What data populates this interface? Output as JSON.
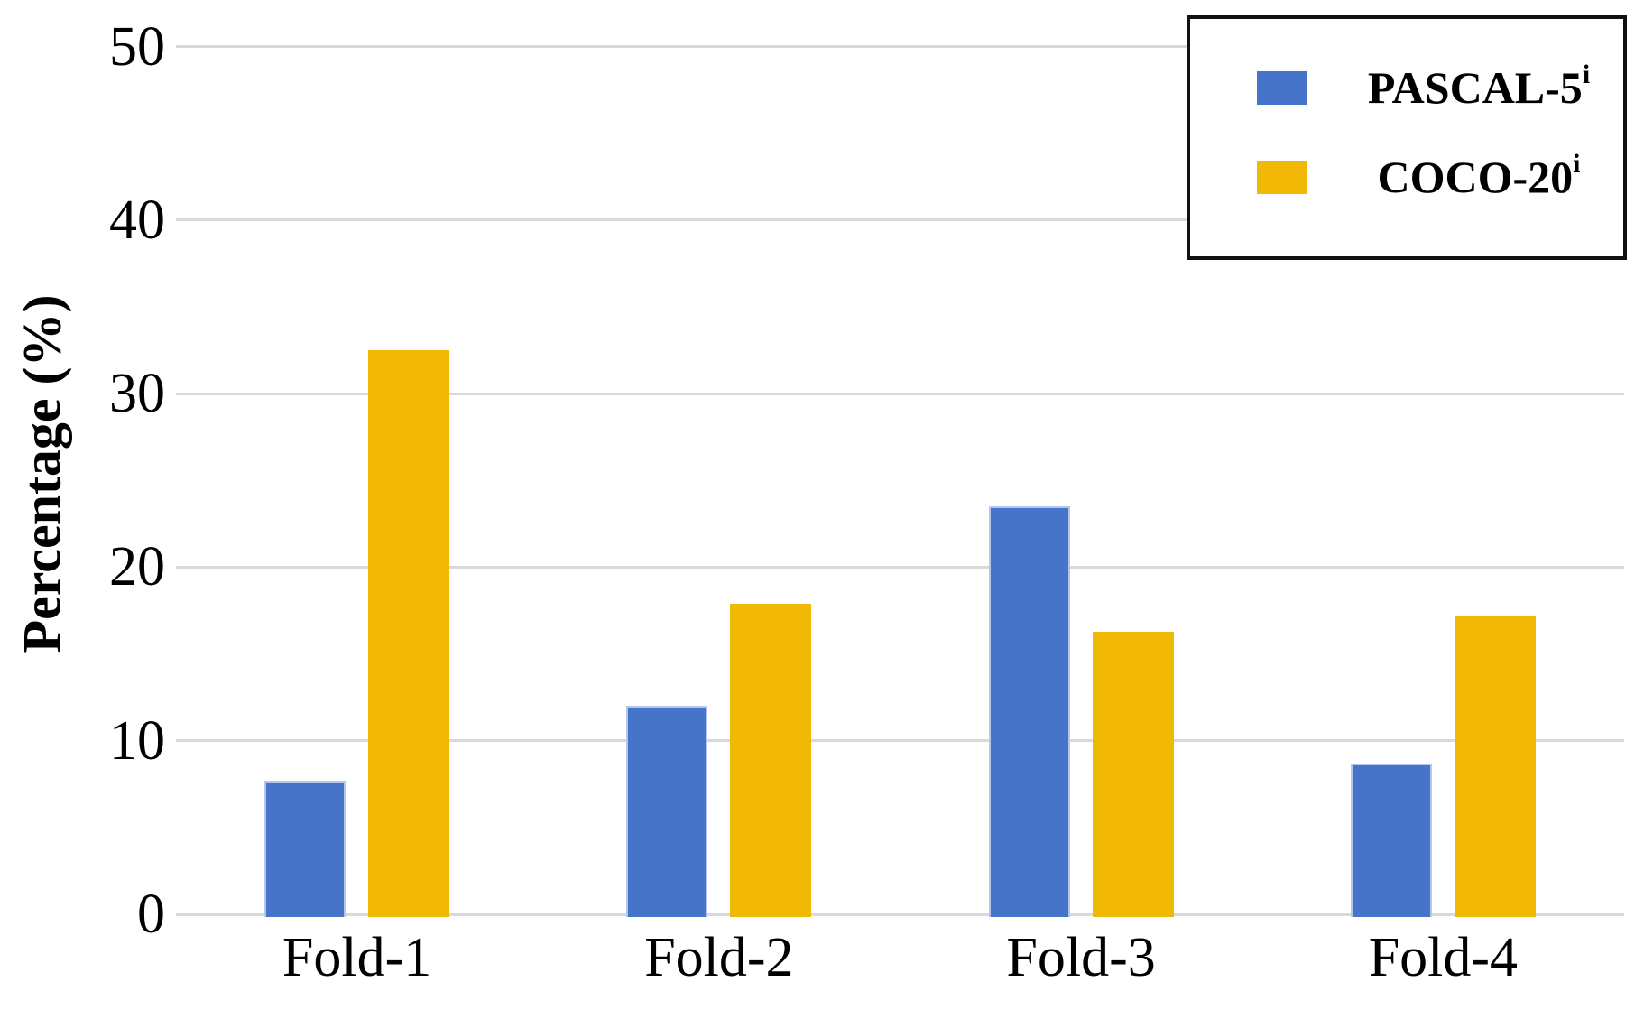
{
  "figure": {
    "background": "#ffffff"
  },
  "y_axis": {
    "title": "Percentage (%)",
    "tick_labels": [
      "0",
      "10",
      "20",
      "30",
      "40",
      "50"
    ]
  },
  "x_axis": {
    "labels": [
      "Fold-1",
      "Fold-2",
      "Fold-3",
      "Fold-4"
    ]
  },
  "legend": {
    "entries": [
      {
        "label_base": "PASCAL-5",
        "superscript": "i",
        "color": "#4674C9"
      },
      {
        "label_base": "COCO-20",
        "superscript": "i",
        "color": "#F1B805"
      }
    ]
  },
  "chart_data": {
    "type": "bar",
    "title": "",
    "xlabel": "",
    "ylabel": "Percentage (%)",
    "categories": [
      "Fold-1",
      "Fold-2",
      "Fold-3",
      "Fold-4"
    ],
    "series": [
      {
        "name": "PASCAL-5^i",
        "color": "#4674C9",
        "values": [
          7.7,
          12.0,
          23.5,
          8.7
        ]
      },
      {
        "name": "COCO-20^i",
        "color": "#F1B805",
        "values": [
          32.5,
          17.9,
          16.3,
          17.2
        ]
      }
    ],
    "ylim": [
      0,
      50
    ],
    "yticks": [
      0,
      10,
      20,
      30,
      40,
      50
    ],
    "grid": "horizontal",
    "legend_position": "top-right",
    "colors": {
      "gridline": "#d9d9d9",
      "text": "#000000",
      "legend_border": "#111111",
      "blue_bar_edge": "#b3c6ec"
    }
  }
}
